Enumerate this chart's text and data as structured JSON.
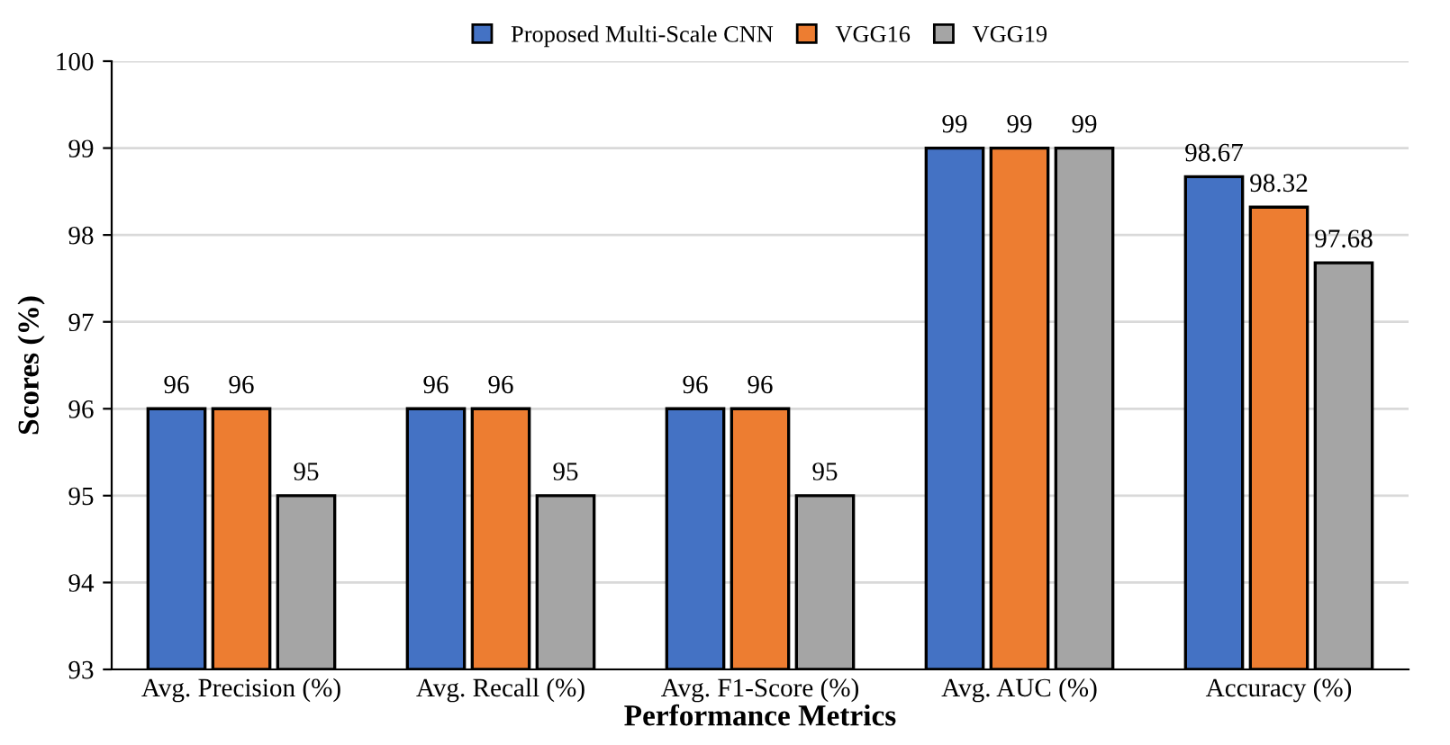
{
  "chart_data": {
    "type": "bar",
    "xlabel": "Performance Metrics",
    "ylabel": "Scores (%)",
    "categories": [
      "Avg. Precision (%)",
      "Avg. Recall (%)",
      "Avg. F1-Score (%)",
      "Avg. AUC (%)",
      "Accuracy (%)"
    ],
    "series": [
      {
        "name": "Proposed Multi-Scale CNN",
        "color": "#4472c4",
        "values": [
          96,
          96,
          96,
          99,
          98.67
        ]
      },
      {
        "name": "VGG16",
        "color": "#ed7d31",
        "values": [
          96,
          96,
          96,
          99,
          98.32
        ]
      },
      {
        "name": "VGG19",
        "color": "#a5a5a5",
        "values": [
          95,
          95,
          95,
          99,
          97.68
        ]
      }
    ],
    "ylim": [
      93,
      100
    ],
    "yticks": [
      93,
      94,
      95,
      96,
      97,
      98,
      99,
      100
    ],
    "grid": "y",
    "legend": "top",
    "data_labels": true
  }
}
